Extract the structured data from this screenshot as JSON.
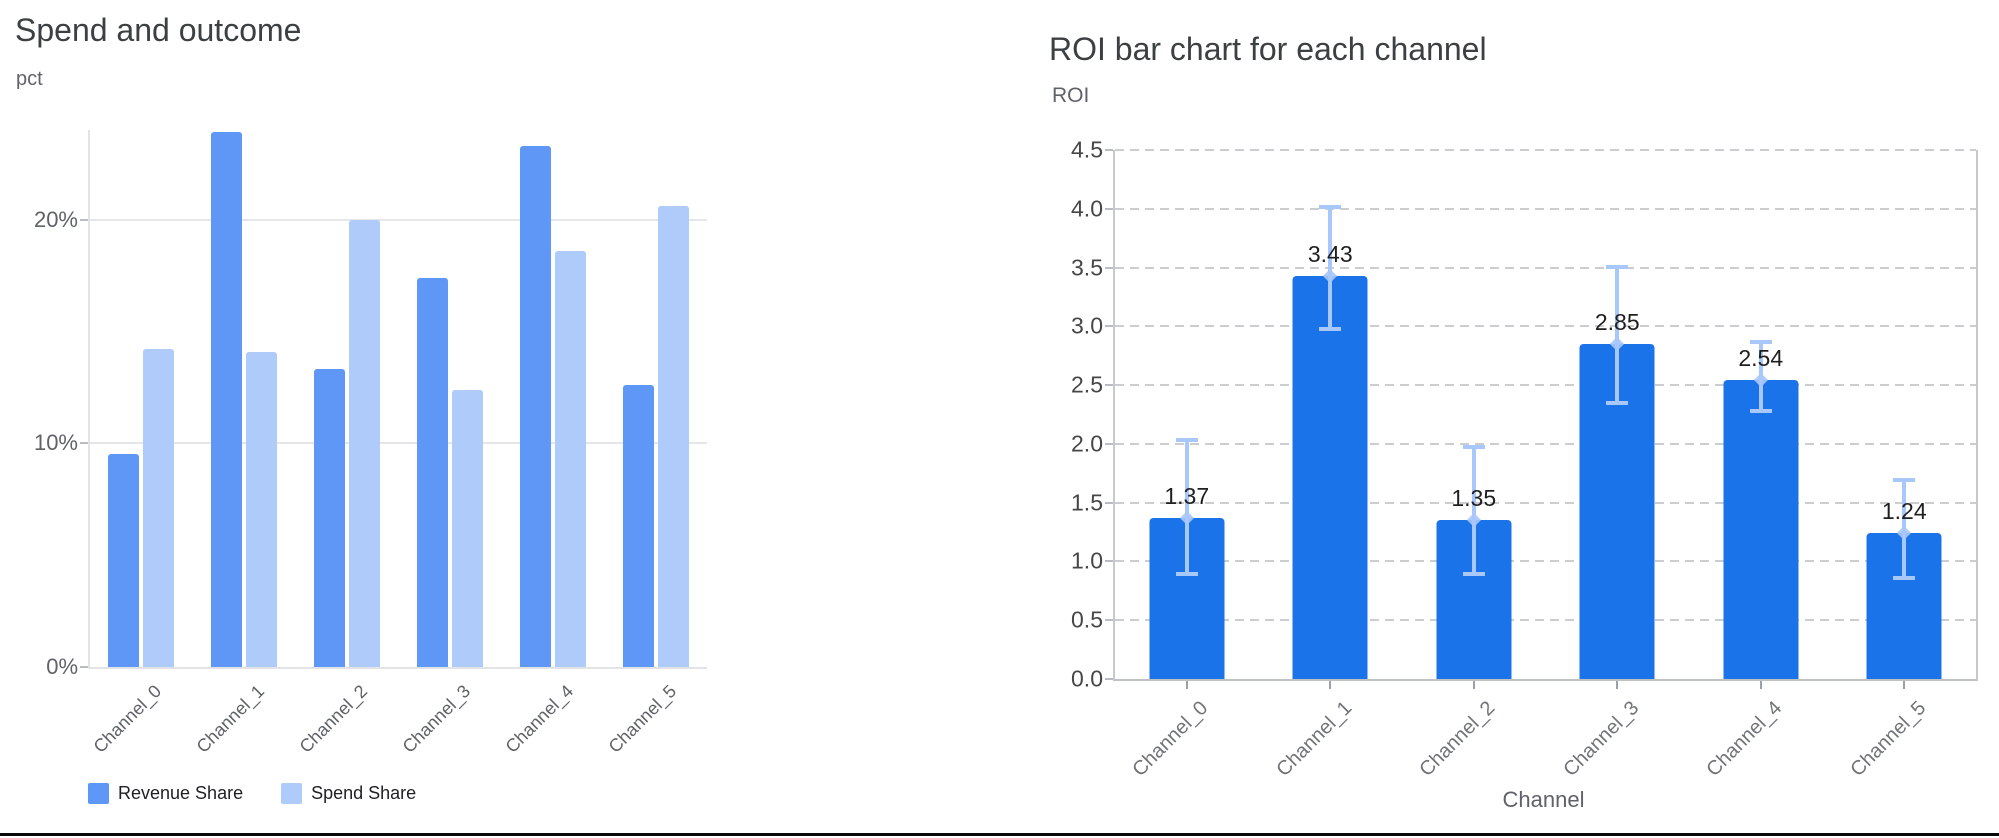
{
  "chart_data": [
    {
      "type": "bar",
      "title": "Spend and outcome",
      "ylabel": "pct",
      "xlabel": "",
      "categories": [
        "Channel_0",
        "Channel_1",
        "Channel_2",
        "Channel_3",
        "Channel_4",
        "Channel_5"
      ],
      "series": [
        {
          "name": "Revenue Share",
          "color": "#5E97F6",
          "values": [
            9.5,
            23.9,
            13.3,
            17.4,
            23.3,
            12.6
          ]
        },
        {
          "name": "Spend Share",
          "color": "#AECBFA",
          "values": [
            14.2,
            14.1,
            20.0,
            12.4,
            18.6,
            20.6
          ]
        }
      ],
      "unit": "percent",
      "ylim": [
        0,
        24
      ],
      "yticks": {
        "values": [
          0,
          10,
          20
        ],
        "labels": [
          "0%",
          "10%",
          "20%"
        ]
      },
      "grid": "solid",
      "legend_position": "bottom-left"
    },
    {
      "type": "bar",
      "title": "ROI bar chart for each channel",
      "ylabel": "ROI",
      "xlabel": "Channel",
      "categories": [
        "Channel_0",
        "Channel_1",
        "Channel_2",
        "Channel_3",
        "Channel_4",
        "Channel_5"
      ],
      "series": [
        {
          "name": "ROI",
          "color": "#1A73E8",
          "values": [
            1.37,
            3.43,
            1.35,
            2.85,
            2.54,
            1.24
          ],
          "labels": [
            "1.37",
            "3.43",
            "1.35",
            "2.85",
            "2.54",
            "1.24"
          ],
          "error_low": [
            0.88,
            2.96,
            0.88,
            2.33,
            2.26,
            0.84
          ],
          "error_high": [
            2.05,
            4.03,
            1.99,
            3.52,
            2.88,
            1.71
          ],
          "error_color": "#A8C7FA"
        }
      ],
      "ylim": [
        0,
        4.5
      ],
      "yticks": {
        "values": [
          0.0,
          0.5,
          1.0,
          1.5,
          2.0,
          2.5,
          3.0,
          3.5,
          4.0,
          4.5
        ],
        "labels": [
          "0.0",
          "0.5",
          "1.0",
          "1.5",
          "2.0",
          "2.5",
          "3.0",
          "3.5",
          "4.0",
          "4.5"
        ]
      },
      "grid": "dashed",
      "legend_position": "none"
    }
  ]
}
